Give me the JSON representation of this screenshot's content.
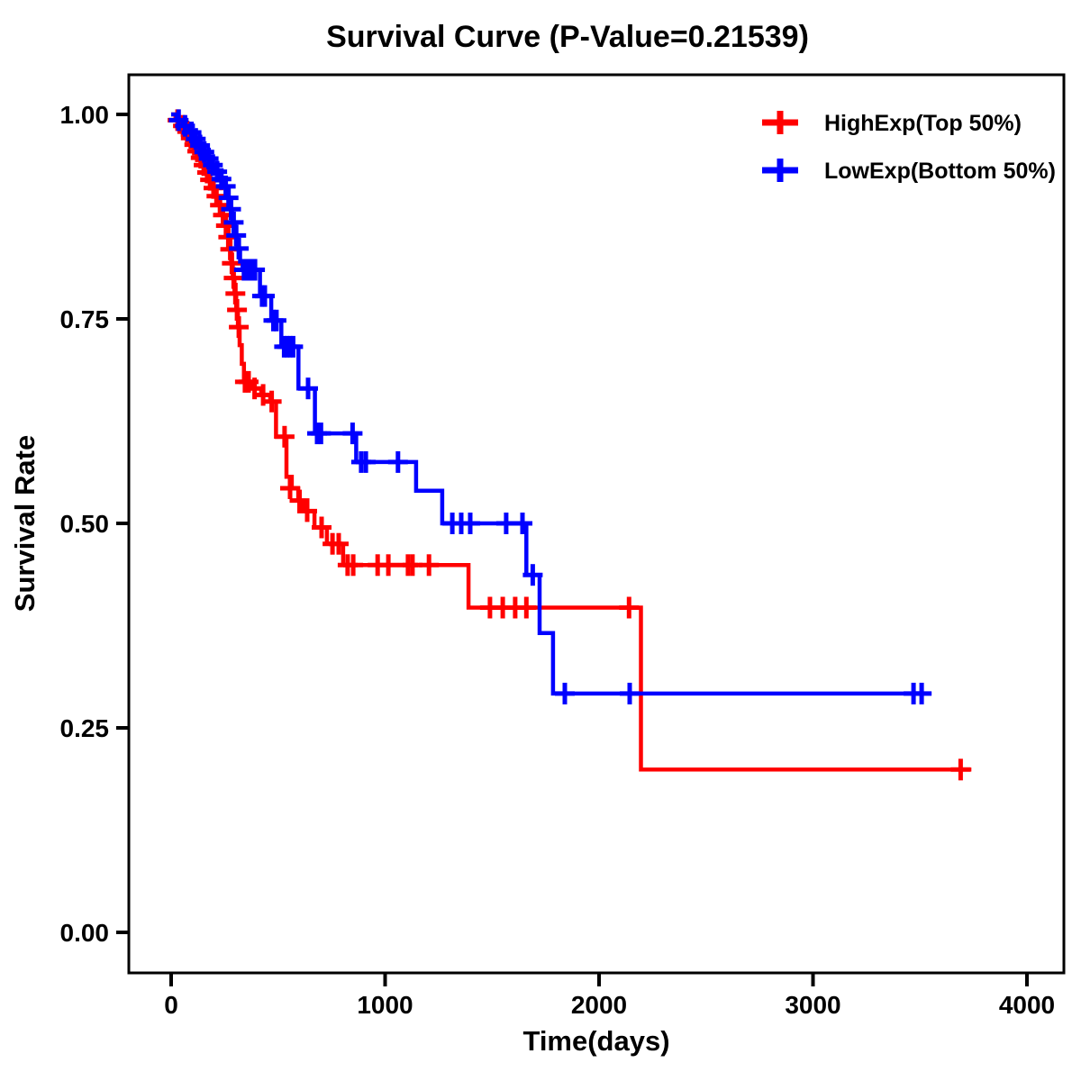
{
  "chart_data": {
    "type": "line",
    "subtype": "kaplan-meier-step-survival",
    "title": "Survival Curve (P-Value=0.21539)",
    "p_value": "0.21539",
    "xlabel": "Time(days)",
    "ylabel": "Survival Rate",
    "x_ticks": [
      0,
      1000,
      2000,
      3000,
      4000
    ],
    "y_ticks": [
      0,
      0.25,
      0.5,
      0.75,
      1.0
    ],
    "y_tick_labels": [
      "0.00",
      "0.25",
      "0.50",
      "0.75",
      "1.00"
    ],
    "xlim": [
      -200,
      4175
    ],
    "ylim": [
      -0.05,
      1.05
    ],
    "grid": false,
    "background": "#ffffff",
    "frame_color": "#000000",
    "legend": {
      "position": "top-right",
      "marker": "plus-cross",
      "border": "none"
    },
    "series": [
      {
        "name": "HighExp(Top 50%)",
        "color": "#ff0000",
        "end_time": 3740,
        "steps": [
          [
            0,
            1.0
          ],
          [
            20,
            0.993
          ],
          [
            45,
            0.986
          ],
          [
            65,
            0.979
          ],
          [
            85,
            0.971
          ],
          [
            100,
            0.963
          ],
          [
            115,
            0.955
          ],
          [
            130,
            0.947
          ],
          [
            145,
            0.938
          ],
          [
            160,
            0.929
          ],
          [
            175,
            0.92
          ],
          [
            190,
            0.91
          ],
          [
            205,
            0.9
          ],
          [
            220,
            0.889
          ],
          [
            235,
            0.877
          ],
          [
            250,
            0.864
          ],
          [
            262,
            0.85
          ],
          [
            272,
            0.835
          ],
          [
            280,
            0.818
          ],
          [
            288,
            0.8
          ],
          [
            296,
            0.781
          ],
          [
            304,
            0.761
          ],
          [
            312,
            0.74
          ],
          [
            320,
            0.718
          ],
          [
            330,
            0.695
          ],
          [
            340,
            0.673
          ],
          [
            379,
            0.665
          ],
          [
            421,
            0.657
          ],
          [
            463,
            0.649
          ],
          [
            490,
            0.606
          ],
          [
            539,
            0.557
          ],
          [
            564,
            0.543
          ],
          [
            594,
            0.528
          ],
          [
            619,
            0.515
          ],
          [
            670,
            0.495
          ],
          [
            728,
            0.475
          ],
          [
            804,
            0.449
          ],
          [
            1390,
            0.397
          ],
          [
            2196,
            0.199
          ]
        ],
        "censors": [
          [
            30,
            0.993
          ],
          [
            55,
            0.986
          ],
          [
            75,
            0.979
          ],
          [
            92,
            0.971
          ],
          [
            108,
            0.963
          ],
          [
            122,
            0.955
          ],
          [
            138,
            0.947
          ],
          [
            152,
            0.938
          ],
          [
            168,
            0.929
          ],
          [
            182,
            0.92
          ],
          [
            198,
            0.91
          ],
          [
            212,
            0.9
          ],
          [
            228,
            0.889
          ],
          [
            242,
            0.877
          ],
          [
            256,
            0.864
          ],
          [
            267,
            0.85
          ],
          [
            276,
            0.835
          ],
          [
            284,
            0.818
          ],
          [
            292,
            0.8
          ],
          [
            300,
            0.781
          ],
          [
            308,
            0.761
          ],
          [
            316,
            0.74
          ],
          [
            345,
            0.673
          ],
          [
            362,
            0.673
          ],
          [
            390,
            0.665
          ],
          [
            430,
            0.657
          ],
          [
            470,
            0.649
          ],
          [
            530,
            0.606
          ],
          [
            556,
            0.543
          ],
          [
            600,
            0.528
          ],
          [
            636,
            0.515
          ],
          [
            703,
            0.495
          ],
          [
            754,
            0.475
          ],
          [
            783,
            0.475
          ],
          [
            825,
            0.449
          ],
          [
            851,
            0.449
          ],
          [
            965,
            0.449
          ],
          [
            1015,
            0.449
          ],
          [
            1107,
            0.449
          ],
          [
            1128,
            0.449
          ],
          [
            1205,
            0.449
          ],
          [
            1490,
            0.397
          ],
          [
            1550,
            0.397
          ],
          [
            1608,
            0.397
          ],
          [
            1660,
            0.397
          ],
          [
            2140,
            0.397
          ],
          [
            3690,
            0.199
          ]
        ]
      },
      {
        "name": "LowExp(Bottom 50%)",
        "color": "#0000ff",
        "end_time": 3554,
        "steps": [
          [
            0,
            1.0
          ],
          [
            25,
            0.993
          ],
          [
            55,
            0.986
          ],
          [
            85,
            0.978
          ],
          [
            108,
            0.97
          ],
          [
            128,
            0.962
          ],
          [
            148,
            0.954
          ],
          [
            168,
            0.946
          ],
          [
            188,
            0.938
          ],
          [
            208,
            0.93
          ],
          [
            228,
            0.921
          ],
          [
            250,
            0.912
          ],
          [
            262,
            0.898
          ],
          [
            274,
            0.884
          ],
          [
            286,
            0.868
          ],
          [
            298,
            0.852
          ],
          [
            310,
            0.836
          ],
          [
            322,
            0.82
          ],
          [
            334,
            0.81
          ],
          [
            415,
            0.778
          ],
          [
            468,
            0.748
          ],
          [
            515,
            0.716
          ],
          [
            595,
            0.665
          ],
          [
            672,
            0.61
          ],
          [
            865,
            0.575
          ],
          [
            1145,
            0.54
          ],
          [
            1267,
            0.5
          ],
          [
            1660,
            0.437
          ],
          [
            1722,
            0.366
          ],
          [
            1785,
            0.292
          ]
        ],
        "censors": [
          [
            35,
            0.993
          ],
          [
            65,
            0.986
          ],
          [
            95,
            0.978
          ],
          [
            115,
            0.97
          ],
          [
            135,
            0.962
          ],
          [
            155,
            0.954
          ],
          [
            175,
            0.946
          ],
          [
            195,
            0.938
          ],
          [
            215,
            0.93
          ],
          [
            235,
            0.921
          ],
          [
            255,
            0.912
          ],
          [
            268,
            0.898
          ],
          [
            280,
            0.884
          ],
          [
            292,
            0.868
          ],
          [
            304,
            0.852
          ],
          [
            316,
            0.836
          ],
          [
            340,
            0.81
          ],
          [
            352,
            0.81
          ],
          [
            364,
            0.81
          ],
          [
            378,
            0.81
          ],
          [
            392,
            0.81
          ],
          [
            425,
            0.778
          ],
          [
            438,
            0.778
          ],
          [
            478,
            0.748
          ],
          [
            492,
            0.748
          ],
          [
            528,
            0.716
          ],
          [
            542,
            0.716
          ],
          [
            556,
            0.716
          ],
          [
            570,
            0.716
          ],
          [
            640,
            0.665
          ],
          [
            682,
            0.61
          ],
          [
            700,
            0.61
          ],
          [
            848,
            0.61
          ],
          [
            888,
            0.575
          ],
          [
            910,
            0.575
          ],
          [
            1060,
            0.575
          ],
          [
            1314,
            0.5
          ],
          [
            1356,
            0.5
          ],
          [
            1398,
            0.5
          ],
          [
            1566,
            0.5
          ],
          [
            1642,
            0.5
          ],
          [
            1690,
            0.437
          ],
          [
            1840,
            0.292
          ],
          [
            2143,
            0.292
          ],
          [
            3470,
            0.292
          ],
          [
            3508,
            0.292
          ]
        ]
      }
    ]
  }
}
